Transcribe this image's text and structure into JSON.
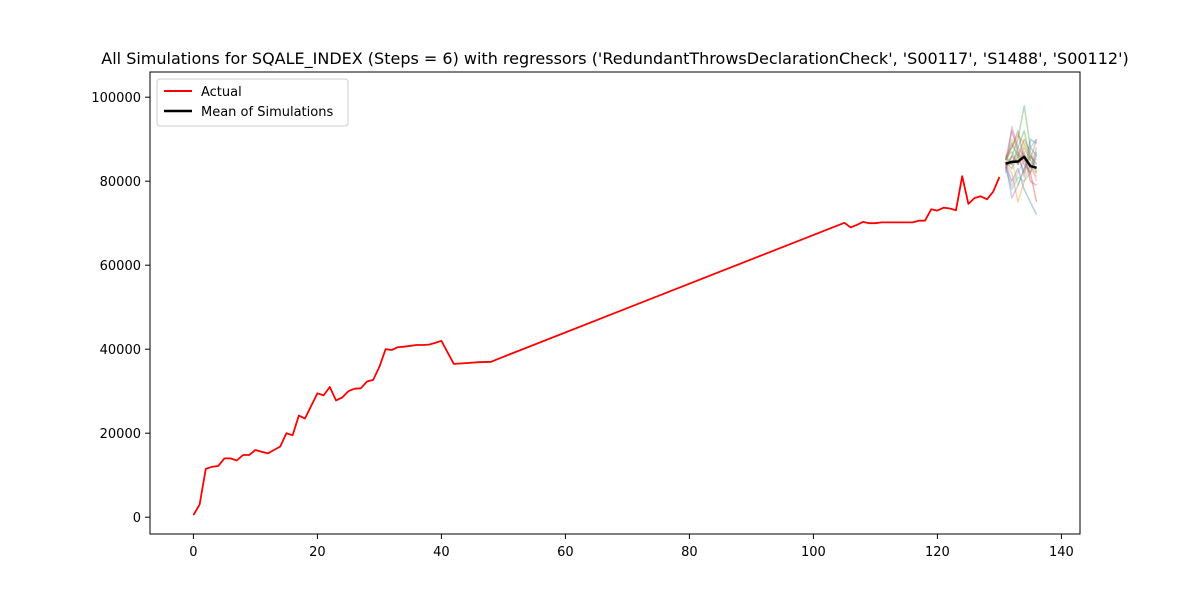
{
  "chart_data": {
    "type": "line",
    "title": "All Simulations for SQALE_INDEX (Steps = 6) with regressors ('RedundantThrowsDeclarationCheck', 'S00117', 'S1488', 'S00112')",
    "xlabel": "",
    "ylabel": "",
    "xlim": [
      -7,
      143
    ],
    "ylim": [
      -4000,
      106000
    ],
    "xticks": [
      0,
      20,
      40,
      60,
      80,
      100,
      120,
      140
    ],
    "yticks": [
      0,
      20000,
      40000,
      60000,
      80000,
      100000
    ],
    "legend": {
      "placement": "top-left",
      "entries": [
        "Actual",
        "Mean of Simulations"
      ]
    },
    "grid": false,
    "colors": {
      "actual": "#ff0000",
      "mean": "#000000"
    },
    "series": [
      {
        "name": "Actual",
        "x": [
          0,
          1,
          2,
          3,
          4,
          5,
          6,
          7,
          8,
          9,
          10,
          11,
          12,
          13,
          14,
          15,
          16,
          17,
          18,
          19,
          20,
          21,
          22,
          23,
          24,
          25,
          26,
          27,
          28,
          29,
          30,
          31,
          32,
          33,
          34,
          35,
          36,
          37,
          38,
          39,
          40,
          42,
          44,
          46,
          48,
          50,
          105,
          106,
          107,
          108,
          109,
          110,
          111,
          112,
          113,
          114,
          115,
          116,
          117,
          118,
          119,
          120,
          121,
          122,
          123,
          124,
          125,
          126,
          127,
          128,
          129,
          130
        ],
        "y": [
          500,
          3000,
          11500,
          12000,
          12200,
          14000,
          14000,
          13500,
          14800,
          14800,
          16000,
          15600,
          15200,
          16000,
          16800,
          20000,
          19500,
          24200,
          23500,
          26500,
          29500,
          29000,
          31000,
          27800,
          28500,
          30000,
          30600,
          30700,
          32300,
          32700,
          35800,
          40000,
          39800,
          40500,
          40600,
          40800,
          41000,
          41000,
          41100,
          41500,
          42000,
          36500,
          36700,
          36900,
          37000,
          38200,
          70100,
          69000,
          69600,
          70300,
          70000,
          70000,
          70200,
          70200,
          70200,
          70200,
          70200,
          70200,
          70600,
          70600,
          73300,
          73000,
          73700,
          73500,
          73100,
          81200,
          74600,
          76000,
          76400,
          75700,
          77500,
          81000
        ]
      },
      {
        "name": "Mean of Simulations",
        "x": [
          131,
          132,
          133,
          134,
          135,
          136
        ],
        "y": [
          84200,
          84600,
          84700,
          85800,
          83600,
          83200
        ]
      }
    ],
    "simulations": [
      {
        "color": "#1f77b4",
        "x": [
          131,
          132,
          133,
          134,
          135,
          136
        ],
        "y": [
          84000,
          80000,
          83000,
          78000,
          75000,
          72000
        ]
      },
      {
        "color": "#ff7f0e",
        "x": [
          131,
          132,
          133,
          134,
          135,
          136
        ],
        "y": [
          86000,
          88000,
          91000,
          89000,
          86000,
          84000
        ]
      },
      {
        "color": "#2ca02c",
        "x": [
          131,
          132,
          133,
          134,
          135,
          136
        ],
        "y": [
          83000,
          86000,
          90000,
          98000,
          88000,
          86000
        ]
      },
      {
        "color": "#d62728",
        "x": [
          131,
          132,
          133,
          134,
          135,
          136
        ],
        "y": [
          85000,
          92000,
          87000,
          84000,
          82000,
          75000
        ]
      },
      {
        "color": "#9467bd",
        "x": [
          131,
          132,
          133,
          134,
          135,
          136
        ],
        "y": [
          82000,
          93000,
          88000,
          86000,
          83000,
          88000
        ]
      },
      {
        "color": "#8c564b",
        "x": [
          131,
          132,
          133,
          134,
          135,
          136
        ],
        "y": [
          84500,
          83000,
          86000,
          90000,
          87000,
          82000
        ]
      },
      {
        "color": "#e377c2",
        "x": [
          131,
          132,
          133,
          134,
          135,
          136
        ],
        "y": [
          83500,
          79000,
          82000,
          85000,
          84000,
          80000
        ]
      },
      {
        "color": "#7f7f7f",
        "x": [
          131,
          132,
          133,
          134,
          135,
          136
        ],
        "y": [
          85500,
          87000,
          84000,
          88000,
          85000,
          90000
        ]
      },
      {
        "color": "#bcbd22",
        "x": [
          131,
          132,
          133,
          134,
          135,
          136
        ],
        "y": [
          84000,
          85000,
          79000,
          83000,
          86000,
          85000
        ]
      },
      {
        "color": "#17becf",
        "x": [
          131,
          132,
          133,
          134,
          135,
          136
        ],
        "y": [
          83000,
          78000,
          81000,
          80000,
          82000,
          86000
        ]
      },
      {
        "color": "#1f77b4",
        "x": [
          131,
          132,
          133,
          134,
          135,
          136
        ],
        "y": [
          85000,
          89000,
          86000,
          82000,
          90000,
          89000
        ]
      },
      {
        "color": "#ff7f0e",
        "x": [
          131,
          132,
          133,
          134,
          135,
          136
        ],
        "y": [
          84000,
          82000,
          75000,
          80000,
          84000,
          81000
        ]
      },
      {
        "color": "#2ca02c",
        "x": [
          131,
          132,
          133,
          134,
          135,
          136
        ],
        "y": [
          86000,
          84000,
          88000,
          92000,
          85000,
          83000
        ]
      },
      {
        "color": "#d62728",
        "x": [
          131,
          132,
          133,
          134,
          135,
          136
        ],
        "y": [
          83000,
          86000,
          84000,
          87000,
          80000,
          79000
        ]
      },
      {
        "color": "#9467bd",
        "x": [
          131,
          132,
          133,
          134,
          135,
          136
        ],
        "y": [
          84500,
          76000,
          79000,
          83000,
          86000,
          84000
        ]
      },
      {
        "color": "#8c564b",
        "x": [
          131,
          132,
          133,
          134,
          135,
          136
        ],
        "y": [
          85000,
          88000,
          92000,
          85000,
          82000,
          87000
        ]
      },
      {
        "color": "#7f7f7f",
        "x": [
          131,
          132,
          133,
          134,
          135,
          136
        ],
        "y": [
          84000,
          84000,
          87000,
          81000,
          88000,
          90000
        ]
      },
      {
        "color": "#bcbd22",
        "x": [
          131,
          132,
          133,
          134,
          135,
          136
        ],
        "y": [
          83500,
          90000,
          85000,
          89000,
          84000,
          82000
        ]
      }
    ]
  }
}
